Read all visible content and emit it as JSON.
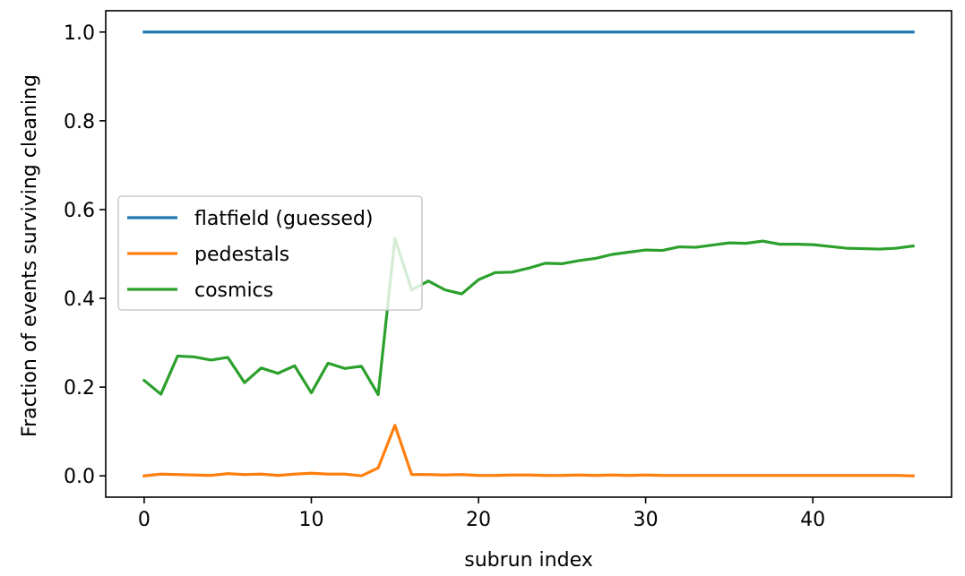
{
  "chart_data": {
    "type": "line",
    "title": "",
    "xlabel": "subrun index",
    "ylabel": "Fraction of events surviving cleaning",
    "xlim": [
      -2.3,
      48.3
    ],
    "ylim": [
      -0.048,
      1.048
    ],
    "xticks": [
      0,
      10,
      20,
      30,
      40
    ],
    "xtick_labels": [
      "0",
      "10",
      "20",
      "30",
      "40"
    ],
    "yticks": [
      0.0,
      0.2,
      0.4,
      0.6,
      0.8,
      1.0
    ],
    "ytick_labels": [
      "0.0",
      "0.2",
      "0.4",
      "0.6",
      "0.8",
      "1.0"
    ],
    "grid": false,
    "legend_position": "center-left",
    "x": [
      0,
      1,
      2,
      3,
      4,
      5,
      6,
      7,
      8,
      9,
      10,
      11,
      12,
      13,
      14,
      15,
      16,
      17,
      18,
      19,
      20,
      21,
      22,
      23,
      24,
      25,
      26,
      27,
      28,
      29,
      30,
      31,
      32,
      33,
      34,
      35,
      36,
      37,
      38,
      39,
      40,
      41,
      42,
      43,
      44,
      45,
      46
    ],
    "series": [
      {
        "name": "flatfield (guessed)",
        "color": "#1f77b4",
        "values": [
          1,
          1,
          1,
          1,
          1,
          1,
          1,
          1,
          1,
          1,
          1,
          1,
          1,
          1,
          1,
          1,
          1,
          1,
          1,
          1,
          1,
          1,
          1,
          1,
          1,
          1,
          1,
          1,
          1,
          1,
          1,
          1,
          1,
          1,
          1,
          1,
          1,
          1,
          1,
          1,
          1,
          1,
          1,
          1,
          1,
          1,
          1
        ]
      },
      {
        "name": "pedestals",
        "color": "#ff7f0e",
        "values": [
          0.0,
          0.004,
          0.003,
          0.002,
          0.001,
          0.005,
          0.003,
          0.004,
          0.001,
          0.004,
          0.006,
          0.004,
          0.004,
          0.0,
          0.018,
          0.114,
          0.003,
          0.003,
          0.002,
          0.003,
          0.001,
          0.001,
          0.002,
          0.002,
          0.001,
          0.001,
          0.002,
          0.001,
          0.002,
          0.001,
          0.002,
          0.001,
          0.001,
          0.001,
          0.001,
          0.001,
          0.001,
          0.001,
          0.001,
          0.001,
          0.001,
          0.001,
          0.001,
          0.001,
          0.001,
          0.001,
          0.0
        ]
      },
      {
        "name": "cosmics",
        "color": "#2ca02c",
        "values": [
          0.215,
          0.184,
          0.27,
          0.268,
          0.261,
          0.267,
          0.21,
          0.243,
          0.231,
          0.248,
          0.187,
          0.254,
          0.242,
          0.247,
          0.183,
          0.535,
          0.419,
          0.439,
          0.419,
          0.41,
          0.442,
          0.458,
          0.459,
          0.468,
          0.479,
          0.478,
          0.485,
          0.49,
          0.499,
          0.504,
          0.509,
          0.508,
          0.516,
          0.515,
          0.52,
          0.525,
          0.524,
          0.529,
          0.522,
          0.522,
          0.521,
          0.517,
          0.513,
          0.512,
          0.511,
          0.513,
          0.518
        ]
      }
    ]
  }
}
